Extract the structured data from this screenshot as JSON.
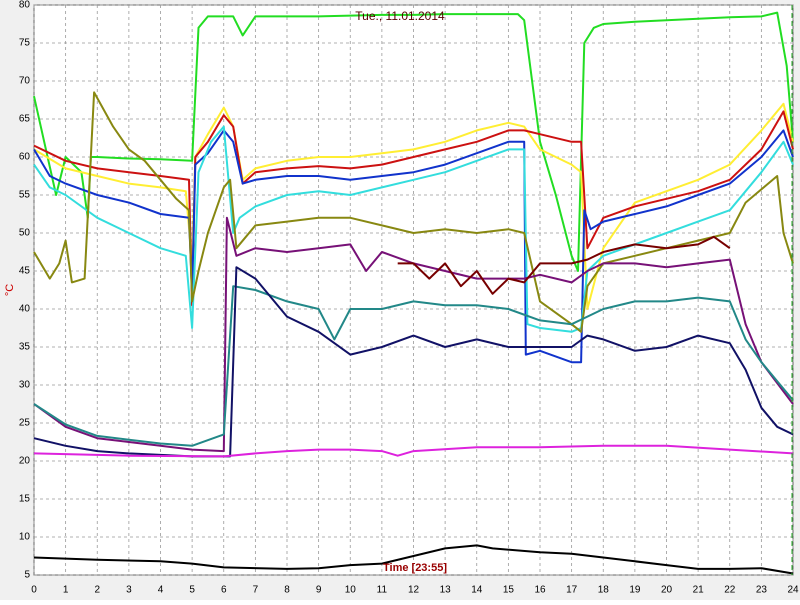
{
  "chart_data": {
    "type": "line",
    "title": "Tue., 11.01.2014",
    "ylabel": "°C",
    "xlabel": "Time [23:55]",
    "xlim": [
      0,
      24
    ],
    "ylim": [
      5,
      80
    ],
    "xticks": [
      0,
      1,
      2,
      3,
      4,
      5,
      6,
      7,
      8,
      9,
      10,
      11,
      12,
      13,
      14,
      15,
      16,
      17,
      18,
      19,
      20,
      21,
      22,
      23,
      24
    ],
    "yticks": [
      5,
      10,
      15,
      20,
      25,
      30,
      35,
      40,
      45,
      50,
      55,
      60,
      65,
      70,
      75,
      80
    ],
    "grid": true,
    "series": [
      {
        "color": "#22dd22",
        "x": [
          0,
          0.7,
          1,
          1.5,
          1.7,
          1.8,
          2,
          3,
          4,
          5,
          5.2,
          5.5,
          6.3,
          6.6,
          7,
          8,
          9,
          10,
          11,
          12,
          13,
          14,
          15.3,
          15.5,
          16,
          16.5,
          17,
          17.2,
          17.4,
          17.7,
          18,
          19,
          20,
          21,
          22,
          23,
          23.5,
          23.8,
          24
        ],
        "values": [
          68,
          55,
          60,
          58,
          52,
          60,
          60,
          59.8,
          59.7,
          59.5,
          77,
          78.5,
          78.5,
          76,
          78.5,
          78.5,
          78.5,
          78.6,
          78.7,
          78.7,
          78.8,
          78.8,
          78.8,
          78,
          62,
          55,
          47,
          45,
          75,
          77,
          77.5,
          77.8,
          78,
          78.2,
          78.4,
          78.5,
          79,
          72,
          62
        ]
      },
      {
        "color": "#ffee33",
        "x": [
          0,
          1,
          2,
          3,
          4,
          4.8,
          5,
          5.1,
          5.5,
          6,
          6.3,
          6.6,
          7,
          8,
          9,
          10,
          11,
          12,
          13,
          14,
          15,
          15.5,
          16,
          17,
          17.3,
          17.5,
          18,
          19,
          20,
          21,
          22,
          23,
          23.7,
          24
        ],
        "values": [
          61,
          58.5,
          57.5,
          56.5,
          56,
          55.5,
          46,
          60,
          63,
          66.5,
          64,
          57,
          58.5,
          59.5,
          60,
          60,
          60.5,
          61,
          62,
          63.5,
          64.5,
          64,
          61,
          59,
          58,
          40,
          48,
          54,
          55.5,
          57,
          59,
          63.5,
          67,
          62
        ]
      },
      {
        "color": "#cc1111",
        "x": [
          0,
          1,
          2,
          3,
          4,
          4.9,
          5,
          5.1,
          5.5,
          6,
          6.3,
          6.6,
          7,
          8,
          9,
          10,
          11,
          12,
          13,
          14,
          15,
          15.5,
          16,
          17,
          17.3,
          17.5,
          18,
          19,
          20,
          21,
          22,
          23,
          23.7,
          24
        ],
        "values": [
          61.5,
          59.5,
          58.5,
          58,
          57.5,
          57,
          40.5,
          60,
          62,
          65.5,
          64,
          56.5,
          58,
          58.5,
          58.8,
          58.5,
          59,
          60,
          61,
          62,
          63.5,
          63.5,
          63,
          62,
          62,
          48,
          52,
          53.5,
          54.5,
          55.5,
          57,
          61,
          66,
          61
        ]
      },
      {
        "color": "#1133cc",
        "x": [
          0,
          0.5,
          1,
          2,
          3,
          4,
          4.9,
          5,
          5.1,
          5.5,
          6,
          6.3,
          6.6,
          7,
          8,
          9,
          10,
          11,
          12,
          13,
          14,
          15,
          15.5,
          15.55,
          16,
          17,
          17.3,
          17.4,
          17.6,
          18,
          19,
          20,
          21,
          22,
          23,
          23.7,
          24
        ],
        "values": [
          61,
          57.5,
          56.5,
          55,
          54,
          52.5,
          52,
          42,
          59,
          60.5,
          63.5,
          62,
          56.5,
          57,
          57.5,
          57.5,
          57,
          57.5,
          58,
          59,
          60.5,
          62,
          62,
          34,
          34.5,
          33,
          33,
          53,
          50.5,
          51.5,
          52.5,
          53.5,
          55,
          56.5,
          60,
          63.5,
          60
        ]
      },
      {
        "color": "#33dddd",
        "x": [
          0,
          0.5,
          1,
          2,
          3,
          4,
          4.8,
          5,
          5.2,
          5.6,
          6,
          6.3,
          6.5,
          7,
          8,
          9,
          10,
          11,
          12,
          13,
          14,
          15,
          15.5,
          15.6,
          16,
          17,
          17.3,
          17.5,
          18,
          19,
          20,
          21,
          22,
          23,
          23.7,
          24
        ],
        "values": [
          59,
          56,
          55,
          52,
          50,
          48,
          47,
          37.5,
          58,
          62,
          64,
          50,
          52,
          53.5,
          55,
          55.5,
          55,
          56,
          57,
          58,
          59.5,
          61,
          61,
          38,
          37.5,
          37,
          37.5,
          45,
          47,
          48.5,
          50,
          51.5,
          53,
          58,
          62,
          59
        ]
      },
      {
        "color": "#888811",
        "x": [
          0,
          0.5,
          0.8,
          1,
          1.2,
          1.6,
          1.9,
          2.5,
          3,
          3.5,
          4,
          4.5,
          4.9,
          5,
          5.2,
          5.5,
          6,
          6.2,
          6.4,
          7,
          8,
          9,
          10,
          11,
          12,
          13,
          14,
          15,
          15.5,
          16,
          17,
          17.3,
          17.5,
          18,
          19,
          20,
          21,
          22,
          22.5,
          23.5,
          23.7,
          24
        ],
        "values": [
          47.5,
          44,
          46,
          49,
          43.5,
          44,
          68.5,
          64,
          61,
          59.5,
          57,
          54.5,
          53,
          41,
          45,
          50,
          56,
          57,
          48,
          51,
          51.5,
          52,
          52,
          51,
          50,
          50.5,
          50,
          50.5,
          50,
          41,
          38,
          37,
          43,
          46,
          47,
          48,
          49,
          50,
          54,
          57.5,
          50,
          46
        ]
      },
      {
        "color": "#771177",
        "x": [
          0,
          1,
          2,
          3,
          4,
          5,
          6,
          6.1,
          6.4,
          7,
          8,
          9,
          10,
          10.5,
          11,
          12,
          13,
          14,
          15,
          15.5,
          16,
          17,
          17.5,
          18,
          19,
          20,
          21,
          22,
          22.5,
          23,
          24
        ],
        "values": [
          27.5,
          24.5,
          23,
          22.5,
          22,
          21.5,
          21.3,
          52,
          47,
          48,
          47.5,
          48,
          48.5,
          45,
          47.5,
          46,
          45,
          44,
          44,
          44,
          44.5,
          43.5,
          45,
          46,
          46,
          45.5,
          46,
          46.5,
          38,
          33,
          27.5
        ]
      },
      {
        "color": "#228888",
        "x": [
          0,
          1,
          2,
          3,
          4,
          5,
          6,
          6.3,
          7,
          8,
          9,
          9.5,
          10,
          11,
          12,
          13,
          14,
          15,
          16,
          17,
          17.5,
          18,
          19,
          20,
          21,
          22,
          22.5,
          23,
          24
        ],
        "values": [
          27.5,
          24.8,
          23.3,
          22.8,
          22.3,
          22,
          23.5,
          43,
          42.5,
          41,
          40,
          36,
          40,
          40,
          41,
          40.5,
          40.5,
          40,
          38.5,
          38,
          39,
          40,
          41,
          41,
          41.5,
          41,
          36,
          33,
          28
        ]
      },
      {
        "color": "#111166",
        "x": [
          0,
          1,
          2,
          3,
          4,
          5,
          6.2,
          6.4,
          7,
          8,
          9,
          10,
          11,
          12,
          13,
          14,
          15,
          16,
          17,
          17.5,
          18,
          19,
          20,
          21,
          22,
          22.5,
          23,
          23.5,
          24
        ],
        "values": [
          23,
          22,
          21.3,
          21,
          20.8,
          20.6,
          20.6,
          45.5,
          44,
          39,
          37,
          34,
          35,
          36.5,
          35,
          36,
          35,
          35,
          35,
          36.5,
          36,
          34.5,
          35,
          36.5,
          35.5,
          32,
          27,
          24.5,
          23.5
        ]
      },
      {
        "color": "#770000",
        "x": [
          11.5,
          12,
          12.5,
          13,
          13.5,
          14,
          14.5,
          15,
          15.5,
          16,
          17,
          17.5,
          18,
          19,
          20,
          21,
          21.5,
          22
        ],
        "values": [
          46,
          46,
          44,
          46,
          43,
          45,
          42,
          44,
          43.5,
          46,
          46,
          46.5,
          47.5,
          48.5,
          48,
          48.5,
          49.5,
          48
        ]
      },
      {
        "color": "#dd22dd",
        "x": [
          0,
          3,
          6,
          7,
          8,
          9,
          10,
          11,
          11.5,
          12,
          14,
          16,
          18,
          20,
          22,
          24
        ],
        "values": [
          21,
          20.7,
          20.6,
          21,
          21.3,
          21.5,
          21.5,
          21.3,
          20.7,
          21.3,
          21.8,
          21.8,
          22,
          22,
          21.5,
          21
        ]
      },
      {
        "color": "#000000",
        "x": [
          0,
          2,
          4,
          5,
          6,
          8,
          9,
          10,
          11,
          12,
          13,
          14,
          14.5,
          16,
          17,
          18,
          19,
          20,
          21,
          22,
          23,
          24
        ],
        "values": [
          7.3,
          7,
          6.8,
          6.5,
          6,
          5.8,
          5.9,
          6.3,
          6.5,
          7.5,
          8.5,
          8.9,
          8.5,
          8,
          7.8,
          7.3,
          6.8,
          6.3,
          5.8,
          5.8,
          5.9,
          5.2
        ]
      }
    ]
  }
}
